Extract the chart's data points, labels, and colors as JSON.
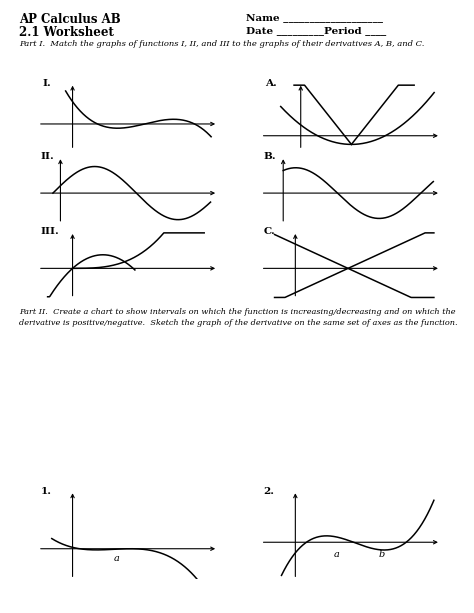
{
  "title1": "AP Calculus AB",
  "title2": "2.1 Worksheet",
  "part1_text": "Part I.  Match the graphs of functions I, II, and III to the graphs of their derivatives A, B, and C.",
  "part2_text": "Part II.  Create a chart to show intervals on which the function is increasing/decreasing and on which the\nderivative is positive/negative.  Sketch the graph of the derivative on the same set of axes as the function.",
  "bg_color": "#ffffff",
  "line_color": "#000000"
}
